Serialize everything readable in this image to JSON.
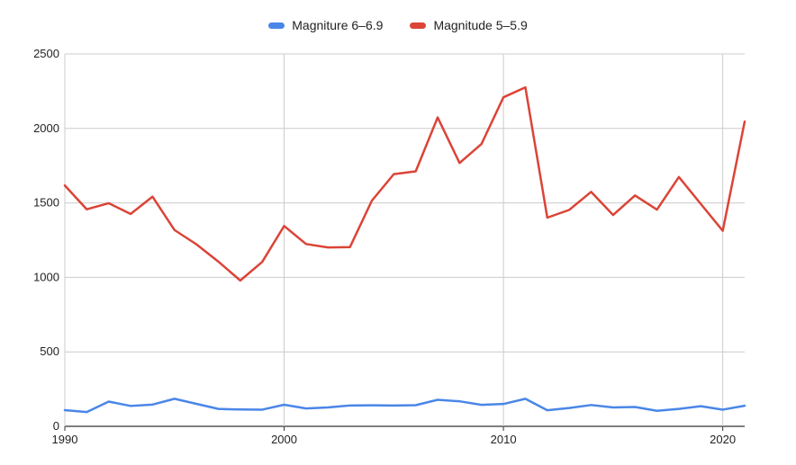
{
  "chart_data": {
    "type": "line",
    "title": "",
    "xlabel": "",
    "ylabel": "",
    "x": [
      1990,
      1991,
      1992,
      1993,
      1994,
      1995,
      1996,
      1997,
      1998,
      1999,
      2000,
      2001,
      2002,
      2003,
      2004,
      2005,
      2006,
      2007,
      2008,
      2009,
      2010,
      2011,
      2012,
      2013,
      2014,
      2015,
      2016,
      2017,
      2018,
      2019,
      2020,
      2021
    ],
    "xlim": [
      1990,
      2021
    ],
    "ylim": [
      0,
      2500
    ],
    "x_ticks": [
      "1990",
      "2000",
      "2010",
      "2020"
    ],
    "y_ticks": [
      "0",
      "500",
      "1000",
      "1500",
      "2000",
      "2500"
    ],
    "grid": true,
    "legend_position": "top",
    "series": [
      {
        "name": "Magniture 6–6.9",
        "color": "#4a86e8",
        "values": [
          109,
          96,
          166,
          137,
          146,
          185,
          151,
          117,
          113,
          112,
          145,
          120,
          127,
          140,
          141,
          140,
          142,
          178,
          168,
          144,
          150,
          185,
          108,
          123,
          143,
          127,
          130,
          104,
          117,
          135,
          112,
          138
        ]
      },
      {
        "name": "Magnitude 5–5.9",
        "color": "#db4437",
        "values": [
          1617,
          1457,
          1498,
          1426,
          1542,
          1318,
          1222,
          1106,
          979,
          1104,
          1345,
          1224,
          1201,
          1203,
          1515,
          1693,
          1712,
          2074,
          1768,
          1896,
          2209,
          2276,
          1401,
          1453,
          1574,
          1419,
          1550,
          1455,
          1674,
          1493,
          1313,
          2046
        ]
      }
    ]
  }
}
